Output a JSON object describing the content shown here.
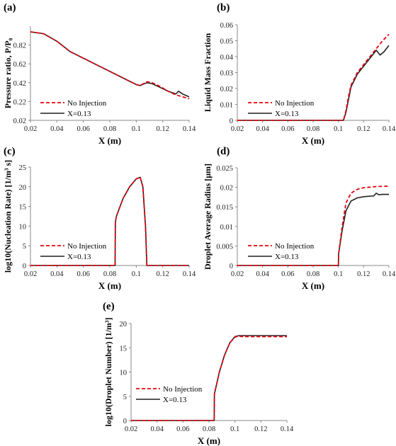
{
  "colors": {
    "no_injection": "#e8000b",
    "x013": "#1f1f1f"
  },
  "chart_data": [
    {
      "id": "a",
      "panel_label": "(a)",
      "type": "line",
      "xlabel": "X (m)",
      "ylabel": "Pressure ratio, P/P₀",
      "xlim": [
        0.02,
        0.14
      ],
      "ylim": [
        0.02,
        1.02
      ],
      "xticks": [
        "0.02",
        "0.04",
        "0.06",
        "0.08",
        "0.1",
        "0.12",
        "0.14"
      ],
      "xtick_values": [
        0.02,
        0.04,
        0.06,
        0.08,
        0.1,
        0.12,
        0.14
      ],
      "yticks": [
        "0.02",
        "0.22",
        "0.42",
        "0.62",
        "0.82"
      ],
      "ytick_values": [
        0.02,
        0.22,
        0.42,
        0.62,
        0.82
      ],
      "legend": [
        "No Injection",
        "X=0.13"
      ],
      "series": [
        {
          "name": "No Injection",
          "style": "dashed",
          "x": [
            0.02,
            0.03,
            0.04,
            0.05,
            0.06,
            0.07,
            0.08,
            0.09,
            0.1,
            0.103,
            0.108,
            0.112,
            0.118,
            0.124,
            0.13,
            0.135,
            0.14
          ],
          "y": [
            0.96,
            0.94,
            0.86,
            0.75,
            0.68,
            0.61,
            0.54,
            0.47,
            0.4,
            0.39,
            0.43,
            0.42,
            0.38,
            0.33,
            0.29,
            0.27,
            0.25
          ]
        },
        {
          "name": "X=0.13",
          "style": "solid",
          "x": [
            0.02,
            0.03,
            0.04,
            0.05,
            0.06,
            0.07,
            0.08,
            0.09,
            0.1,
            0.103,
            0.108,
            0.112,
            0.118,
            0.124,
            0.13,
            0.132,
            0.135,
            0.14
          ],
          "y": [
            0.96,
            0.94,
            0.86,
            0.75,
            0.68,
            0.61,
            0.54,
            0.47,
            0.4,
            0.39,
            0.42,
            0.41,
            0.37,
            0.33,
            0.3,
            0.33,
            0.3,
            0.27
          ]
        }
      ]
    },
    {
      "id": "b",
      "panel_label": "(b)",
      "type": "line",
      "xlabel": "X (m)",
      "ylabel": "Liquid Mass Fraction",
      "xlim": [
        0.02,
        0.14
      ],
      "ylim": [
        0,
        0.06
      ],
      "xticks": [
        "0.02",
        "0.04",
        "0.06",
        "0.08",
        "0.1",
        "0.12",
        "0.14"
      ],
      "xtick_values": [
        0.02,
        0.04,
        0.06,
        0.08,
        0.1,
        0.12,
        0.14
      ],
      "yticks": [
        "0",
        "0.01",
        "0.02",
        "0.03",
        "0.04",
        "0.05",
        "0.06"
      ],
      "ytick_values": [
        0,
        0.01,
        0.02,
        0.03,
        0.04,
        0.05,
        0.06
      ],
      "legend": [
        "No Injection",
        "X=0.13"
      ],
      "series": [
        {
          "name": "No Injection",
          "style": "dashed",
          "x": [
            0.02,
            0.1,
            0.104,
            0.106,
            0.108,
            0.11,
            0.115,
            0.12,
            0.125,
            0.13,
            0.135,
            0.14
          ],
          "y": [
            0,
            0,
            0,
            0.006,
            0.015,
            0.022,
            0.03,
            0.035,
            0.04,
            0.045,
            0.05,
            0.054
          ]
        },
        {
          "name": "X=0.13",
          "style": "solid",
          "x": [
            0.02,
            0.1,
            0.104,
            0.106,
            0.108,
            0.11,
            0.115,
            0.12,
            0.125,
            0.13,
            0.133,
            0.136,
            0.14
          ],
          "y": [
            0,
            0,
            0,
            0.005,
            0.013,
            0.021,
            0.029,
            0.034,
            0.039,
            0.044,
            0.041,
            0.043,
            0.047
          ]
        }
      ]
    },
    {
      "id": "c",
      "panel_label": "(c)",
      "type": "line",
      "xlabel": "X (m)",
      "ylabel": "log10(Nucleation Rate) [1/m³ s]",
      "xlim": [
        0.02,
        0.14
      ],
      "ylim": [
        0,
        25
      ],
      "xticks": [
        "0.02",
        "0.04",
        "0.06",
        "0.08",
        "0.1",
        "0.12",
        "0.14"
      ],
      "xtick_values": [
        0.02,
        0.04,
        0.06,
        0.08,
        0.1,
        0.12,
        0.14
      ],
      "yticks": [
        "0",
        "5",
        "10",
        "15",
        "20",
        "25"
      ],
      "ytick_values": [
        0,
        5,
        10,
        15,
        20,
        25
      ],
      "legend": [
        "No Injection",
        "X=0.13"
      ],
      "series": [
        {
          "name": "No Injection",
          "style": "dashed",
          "x": [
            0.02,
            0.084,
            0.0842,
            0.085,
            0.09,
            0.095,
            0.1,
            0.103,
            0.105,
            0.107,
            0.108,
            0.1082,
            0.14
          ],
          "y": [
            0,
            0,
            11,
            12.5,
            17,
            20,
            22,
            22.4,
            20,
            10,
            0,
            0,
            0
          ]
        },
        {
          "name": "X=0.13",
          "style": "solid",
          "x": [
            0.02,
            0.084,
            0.0842,
            0.085,
            0.09,
            0.095,
            0.1,
            0.103,
            0.105,
            0.107,
            0.108,
            0.1082,
            0.14
          ],
          "y": [
            0,
            0,
            11,
            12.5,
            17,
            20,
            22,
            22.4,
            20,
            10,
            0,
            0,
            0
          ]
        }
      ]
    },
    {
      "id": "d",
      "panel_label": "(d)",
      "type": "line",
      "xlabel": "X (m)",
      "ylabel": "Droplet Average Radius [μm]",
      "xlim": [
        0.02,
        0.14
      ],
      "ylim": [
        0,
        0.025
      ],
      "xticks": [
        "0.02",
        "0.04",
        "0.06",
        "0.08",
        "0.1",
        "0.12",
        "0.14"
      ],
      "xtick_values": [
        0.02,
        0.04,
        0.06,
        0.08,
        0.1,
        0.12,
        0.14
      ],
      "yticks": [
        "0",
        "0.005",
        "0.01",
        "0.015",
        "0.02",
        "0.025"
      ],
      "ytick_values": [
        0,
        0.005,
        0.01,
        0.015,
        0.02,
        0.025
      ],
      "legend": [
        "No Injection",
        "X=0.13"
      ],
      "series": [
        {
          "name": "No Injection",
          "style": "dashed",
          "x": [
            0.02,
            0.1,
            0.1002,
            0.103,
            0.106,
            0.11,
            0.115,
            0.12,
            0.13,
            0.14
          ],
          "y": [
            0,
            0,
            0.003,
            0.01,
            0.016,
            0.0185,
            0.0195,
            0.0199,
            0.0202,
            0.0203
          ]
        },
        {
          "name": "X=0.13",
          "style": "solid",
          "x": [
            0.02,
            0.1,
            0.1002,
            0.103,
            0.106,
            0.11,
            0.115,
            0.12,
            0.128,
            0.13,
            0.132,
            0.135,
            0.14
          ],
          "y": [
            0,
            0,
            0.003,
            0.009,
            0.014,
            0.0165,
            0.0173,
            0.0176,
            0.0178,
            0.0185,
            0.0181,
            0.0182,
            0.0182
          ]
        }
      ]
    },
    {
      "id": "e",
      "panel_label": "(e)",
      "type": "line",
      "xlabel": "X (m)",
      "ylabel": "log10(Droplet Number) [1/m³]",
      "xlim": [
        0.02,
        0.14
      ],
      "ylim": [
        0,
        20
      ],
      "xticks": [
        "0.02",
        "0.04",
        "0.06",
        "0.08",
        "0.1",
        "0.12",
        "0.14"
      ],
      "xtick_values": [
        0.02,
        0.04,
        0.06,
        0.08,
        0.1,
        0.12,
        0.14
      ],
      "yticks": [
        "0",
        "5",
        "10",
        "15",
        "20"
      ],
      "ytick_values": [
        0,
        5,
        10,
        15,
        20
      ],
      "legend": [
        "No Injection",
        "X=0.13"
      ],
      "series": [
        {
          "name": "No Injection",
          "style": "dashed",
          "x": [
            0.02,
            0.084,
            0.0842,
            0.088,
            0.092,
            0.096,
            0.1,
            0.103,
            0.106,
            0.14
          ],
          "y": [
            0,
            0,
            5.5,
            10,
            13.5,
            16,
            17.2,
            17.4,
            17.3,
            17.3
          ]
        },
        {
          "name": "X=0.13",
          "style": "solid",
          "x": [
            0.02,
            0.084,
            0.0842,
            0.088,
            0.092,
            0.096,
            0.1,
            0.103,
            0.106,
            0.14
          ],
          "y": [
            0,
            0,
            5.5,
            10,
            13.5,
            16,
            17.3,
            17.5,
            17.5,
            17.5
          ]
        }
      ]
    }
  ]
}
